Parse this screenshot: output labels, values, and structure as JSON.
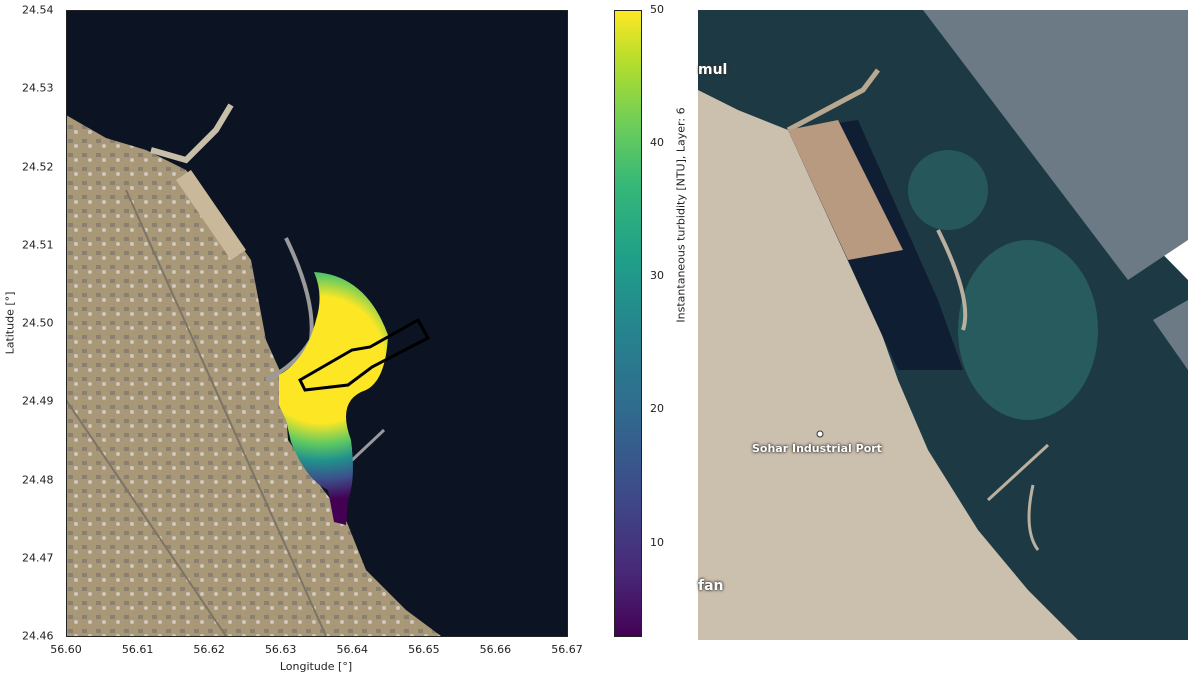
{
  "chart_data": {
    "type": "heatmap",
    "xlabel": "Longitude [°]",
    "ylabel": "Latitude [°]",
    "xlim": [
      56.6,
      56.67
    ],
    "ylim": [
      24.46,
      24.54
    ],
    "xticks": [
      "56.60",
      "56.61",
      "56.62",
      "56.63",
      "56.64",
      "56.65",
      "56.66",
      "56.67"
    ],
    "yticks": [
      "24.54",
      "24.53",
      "24.52",
      "24.51",
      "24.50",
      "24.49",
      "24.48",
      "24.47",
      "24.46"
    ],
    "colorbar": {
      "label": "Instantaneous turbidity [NTU], Layer: 6",
      "ticks": [
        "50",
        "40",
        "30",
        "20",
        "10"
      ],
      "range": [
        3,
        50
      ],
      "colormap": "viridis"
    },
    "background": "satellite imagery",
    "outline_color": "#000000"
  },
  "reference_map": {
    "labels": [
      "mul",
      "Sohar Industrial Port",
      "fan"
    ]
  }
}
